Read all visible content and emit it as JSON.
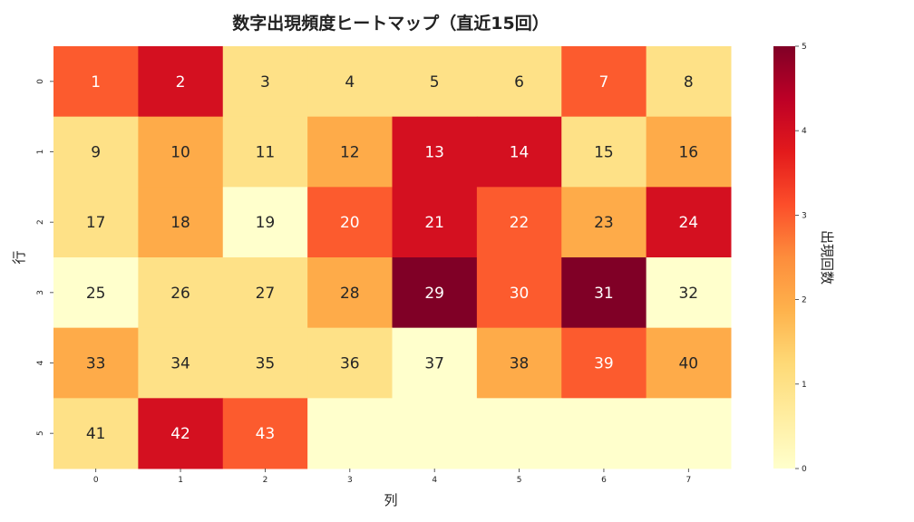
{
  "chart_data": {
    "type": "heatmap",
    "title": "数字出現頻度ヒートマップ（直近15回）",
    "xlabel": "列",
    "ylabel": "行",
    "x_ticks": [
      "0",
      "1",
      "2",
      "3",
      "4",
      "5",
      "6",
      "7"
    ],
    "y_ticks": [
      "0",
      "1",
      "2",
      "3",
      "4",
      "5"
    ],
    "colorbar_label": "出現回数",
    "colorbar_ticks": [
      "0",
      "1",
      "2",
      "3",
      "4",
      "5"
    ],
    "vmin": 0,
    "vmax": 5,
    "colormap": "YlOrRd",
    "cell_labels": [
      [
        "1",
        "2",
        "3",
        "4",
        "5",
        "6",
        "7",
        "8"
      ],
      [
        "9",
        "10",
        "11",
        "12",
        "13",
        "14",
        "15",
        "16"
      ],
      [
        "17",
        "18",
        "19",
        "20",
        "21",
        "22",
        "23",
        "24"
      ],
      [
        "25",
        "26",
        "27",
        "28",
        "29",
        "30",
        "31",
        "32"
      ],
      [
        "33",
        "34",
        "35",
        "36",
        "37",
        "38",
        "39",
        "40"
      ],
      [
        "41",
        "42",
        "43",
        "",
        "",
        "",
        "",
        ""
      ]
    ],
    "values": [
      [
        3,
        4,
        1,
        1,
        1,
        1,
        3,
        1
      ],
      [
        1,
        2,
        1,
        2,
        4,
        4,
        1,
        2
      ],
      [
        1,
        2,
        0,
        3,
        4,
        3,
        2,
        4
      ],
      [
        0,
        1,
        1,
        2,
        5,
        3,
        5,
        0
      ],
      [
        2,
        1,
        1,
        1,
        0,
        2,
        3,
        2
      ],
      [
        1,
        4,
        3,
        0,
        0,
        0,
        0,
        0
      ]
    ]
  }
}
